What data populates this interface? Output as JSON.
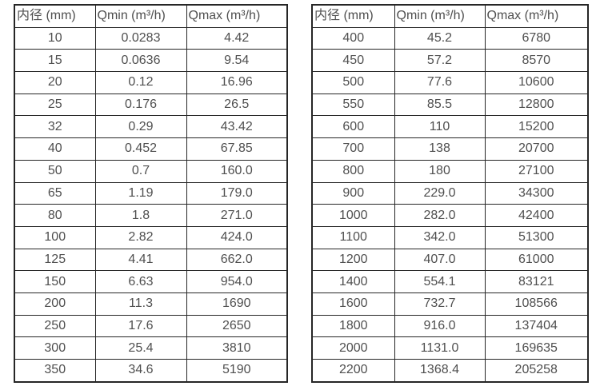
{
  "colors": {
    "background": "#ffffff",
    "border": "#262626",
    "text": "#4f4f4f"
  },
  "tables": [
    {
      "name": "small-diameter-flow-table",
      "headers": [
        "内径 (mm)",
        "Qmin (m³/h)",
        "Qmax (m³/h)"
      ],
      "rows": [
        [
          "10",
          "0.0283",
          "4.42"
        ],
        [
          "15",
          "0.0636",
          "9.54"
        ],
        [
          "20",
          "0.12",
          "16.96"
        ],
        [
          "25",
          "0.176",
          "26.5"
        ],
        [
          "32",
          "0.29",
          "43.42"
        ],
        [
          "40",
          "0.452",
          "67.85"
        ],
        [
          "50",
          "0.7",
          "160.0"
        ],
        [
          "65",
          "1.19",
          "179.0"
        ],
        [
          "80",
          "1.8",
          "271.0"
        ],
        [
          "100",
          "2.82",
          "424.0"
        ],
        [
          "125",
          "4.41",
          "662.0"
        ],
        [
          "150",
          "6.63",
          "954.0"
        ],
        [
          "200",
          "11.3",
          "1690"
        ],
        [
          "250",
          "17.6",
          "2650"
        ],
        [
          "300",
          "25.4",
          "3810"
        ],
        [
          "350",
          "34.6",
          "5190"
        ]
      ]
    },
    {
      "name": "large-diameter-flow-table",
      "headers": [
        "内径 (mm)",
        "Qmin (m³/h)",
        "Qmax (m³/h)"
      ],
      "rows": [
        [
          "400",
          "45.2",
          "6780"
        ],
        [
          "450",
          "57.2",
          "8570"
        ],
        [
          "500",
          "77.6",
          "10600"
        ],
        [
          "550",
          "85.5",
          "12800"
        ],
        [
          "600",
          "110",
          "15200"
        ],
        [
          "700",
          "138",
          "20700"
        ],
        [
          "800",
          "180",
          "27100"
        ],
        [
          "900",
          "229.0",
          "34300"
        ],
        [
          "1000",
          "282.0",
          "42400"
        ],
        [
          "1100",
          "342.0",
          "51300"
        ],
        [
          "1200",
          "407.0",
          "61000"
        ],
        [
          "1400",
          "554.1",
          "83121"
        ],
        [
          "1600",
          "732.7",
          "108566"
        ],
        [
          "1800",
          "916.0",
          "137404"
        ],
        [
          "2000",
          "1131.0",
          "169635"
        ],
        [
          "2200",
          "1368.4",
          "205258"
        ]
      ]
    }
  ]
}
